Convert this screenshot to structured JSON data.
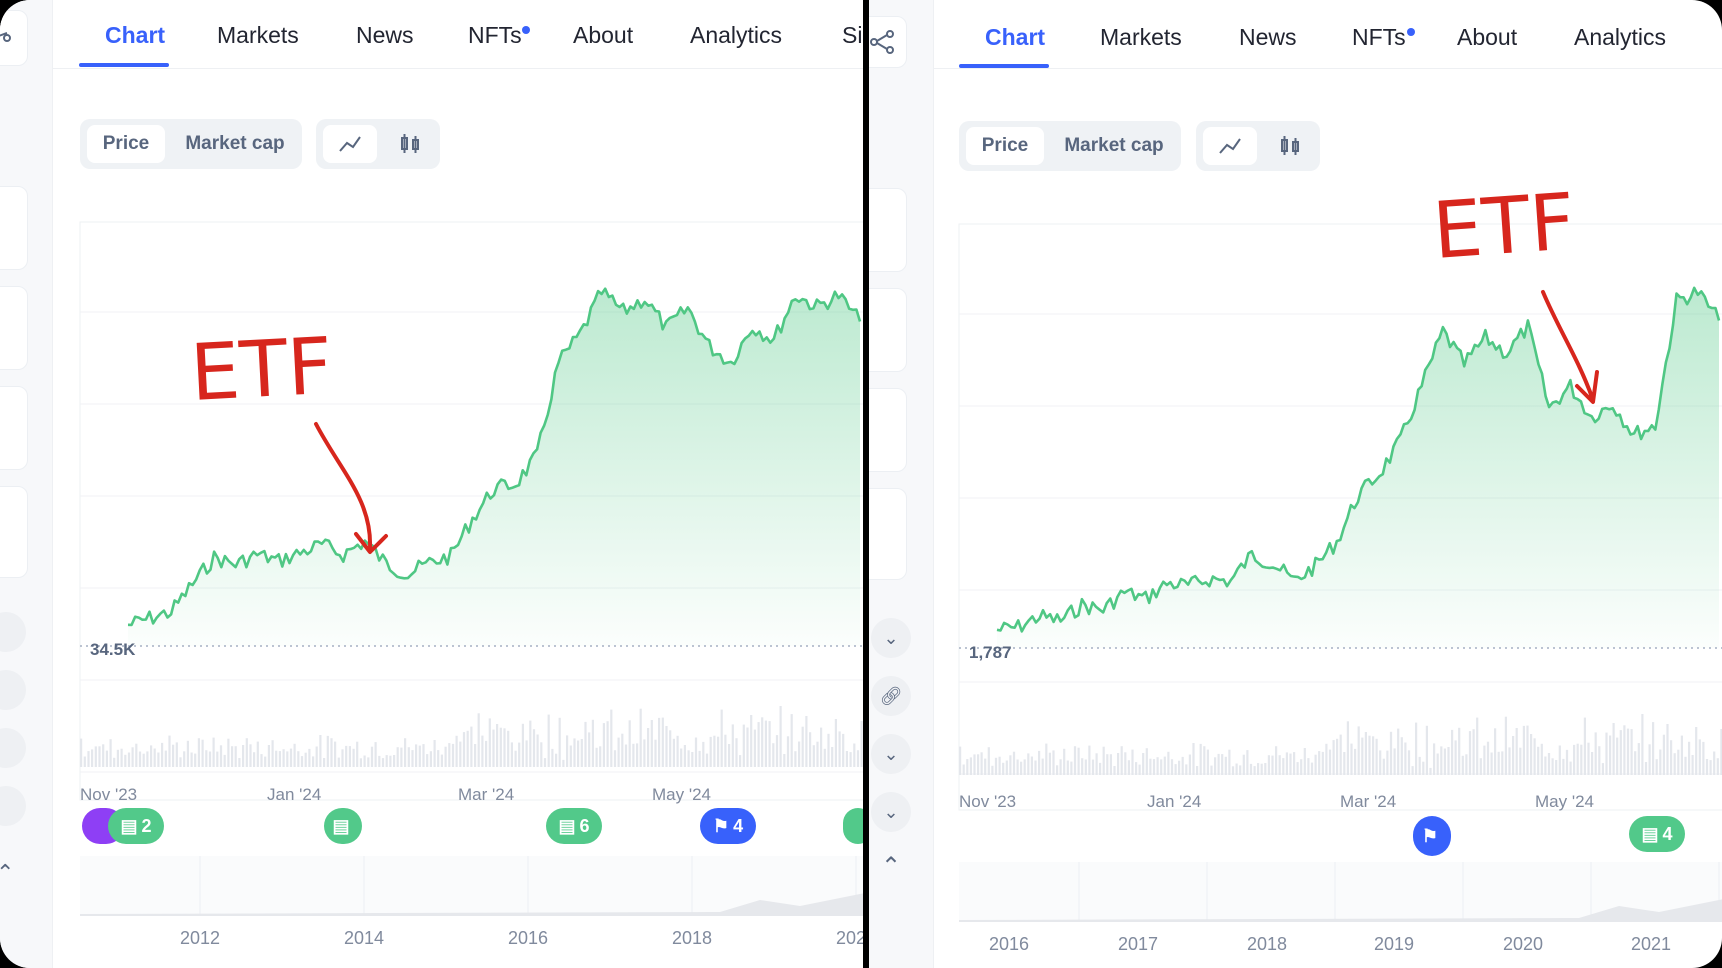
{
  "tabs": [
    "Chart",
    "Markets",
    "News",
    "NFTs",
    "About",
    "Analytics",
    "Si"
  ],
  "controls": {
    "price": "Price",
    "market_cap": "Market cap",
    "line_icon": "line-chart-icon",
    "candle_icon": "candlestick-icon"
  },
  "annotation": {
    "left": "ETF",
    "right": "ETF"
  },
  "colors": {
    "accent": "#3861fb",
    "line": "#4fc784",
    "annotation": "#d7261d"
  },
  "left": {
    "min_label": "34.5K",
    "dates": [
      "Nov '23",
      "Jan '24",
      "Mar '24",
      "May '24"
    ],
    "years": [
      "2012",
      "2014",
      "2016",
      "2018",
      "202"
    ],
    "markers": [
      {
        "icon": "document-icon",
        "count": "2",
        "color": "green"
      },
      {
        "icon": "document-icon",
        "count": "",
        "color": "green"
      },
      {
        "icon": "document-icon",
        "count": "6",
        "color": "green"
      },
      {
        "icon": "flag-icon",
        "count": "4",
        "color": "blue"
      }
    ]
  },
  "right": {
    "min_label": "1,787",
    "dates": [
      "Nov '23",
      "Jan '24",
      "Mar '24",
      "May '24"
    ],
    "years": [
      "2016",
      "2017",
      "2018",
      "2019",
      "2020",
      "2021"
    ],
    "markers": [
      {
        "icon": "flag-icon",
        "count": "",
        "color": "blue"
      },
      {
        "icon": "document-icon",
        "count": "4",
        "color": "green"
      }
    ]
  },
  "chart_data": [
    {
      "type": "area",
      "x_ticks": [
        "Nov '23",
        "Jan '24",
        "Mar '24",
        "May '24"
      ],
      "y_min_label": "34.5K",
      "values": [
        34.5,
        34.9,
        35.3,
        37.0,
        38.6,
        38.2,
        38.8,
        38.4,
        38.9,
        39.4,
        38.8,
        39.6,
        38.2,
        37.6,
        38.3,
        38.7,
        41.0,
        42.8,
        43.1,
        44.8,
        50.5,
        52.2,
        54.8,
        53.6,
        54.4,
        52.6,
        53.8,
        51.5,
        50.5,
        52.7,
        51.9,
        54.6,
        53.9,
        54.6,
        53.0
      ],
      "annotation": "ETF"
    },
    {
      "type": "area",
      "x_ticks": [
        "Nov '23",
        "Jan '24",
        "Mar '24",
        "May '24"
      ],
      "y_min_label": "1,787",
      "values": [
        1787,
        1800,
        1850,
        1830,
        1900,
        1880,
        1960,
        1930,
        2000,
        1990,
        2020,
        2010,
        2130,
        2090,
        2010,
        2080,
        2190,
        2400,
        2500,
        2650,
        2900,
        3150,
        3000,
        3120,
        3050,
        3170,
        2800,
        2900,
        2760,
        2820,
        2680,
        2720,
        3290,
        3330,
        3200
      ],
      "annotation": "ETF"
    }
  ]
}
